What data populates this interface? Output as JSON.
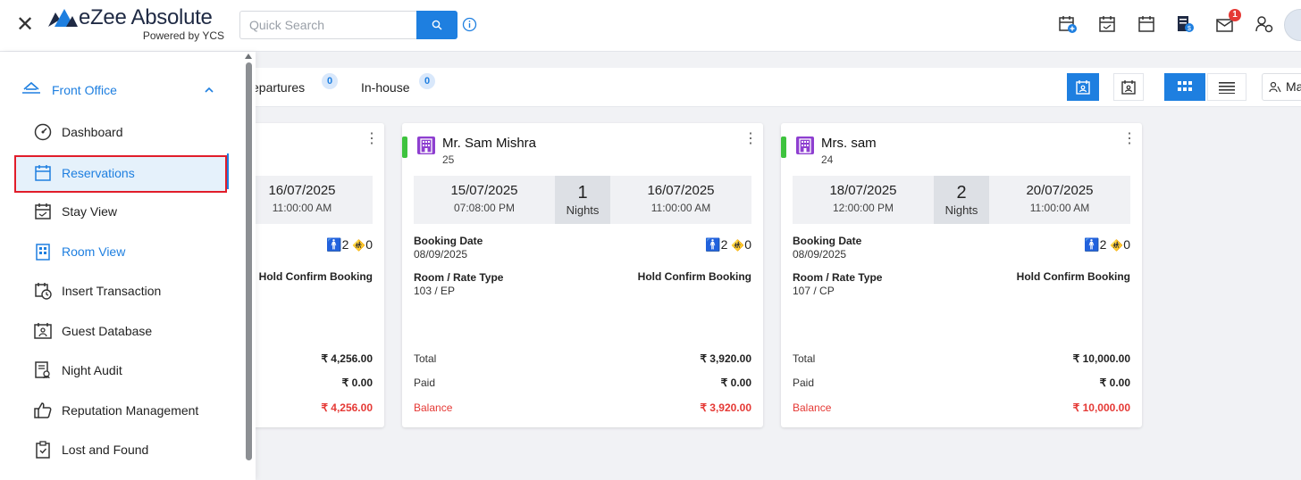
{
  "header": {
    "app_name": "eZee Absolute",
    "app_subtitle": "Powered by YCS",
    "search_placeholder": "Quick Search",
    "notification_count": "1",
    "icons": [
      "close-icon",
      "search-icon",
      "info-icon",
      "add-booking-icon",
      "calendar-check-icon",
      "calendar-icon",
      "billing-icon",
      "mail-icon",
      "handshake-icon",
      "user-avatar"
    ]
  },
  "sidebar": {
    "section_label": "Front Office",
    "items": [
      {
        "label": "Dashboard",
        "icon": "dashboard-icon"
      },
      {
        "label": "Reservations",
        "icon": "calendar-icon",
        "selected": true
      },
      {
        "label": "Stay View",
        "icon": "stay-view-icon"
      },
      {
        "label": "Room View",
        "icon": "room-view-icon"
      },
      {
        "label": "Insert Transaction",
        "icon": "insert-transaction-icon"
      },
      {
        "label": "Guest Database",
        "icon": "guest-database-icon"
      },
      {
        "label": "Night Audit",
        "icon": "night-audit-icon"
      },
      {
        "label": "Reputation Management",
        "icon": "thumbs-up-icon"
      },
      {
        "label": "Lost and Found",
        "icon": "lost-found-icon"
      }
    ]
  },
  "filterbar": {
    "tabs": [
      {
        "label": "epartures",
        "count": "0"
      },
      {
        "label": "In-house",
        "count": "0"
      }
    ],
    "ma_label": "Ma"
  },
  "cards": [
    {
      "guests_adults": "2",
      "guests_children": "0",
      "checkout_date": "16/07/2025",
      "checkout_time": "11:00:00 AM",
      "status": "Hold Confirm Booking",
      "total": "₹ 4,256.00",
      "paid": "₹ 0.00",
      "balance": "₹ 4,256.00"
    },
    {
      "name": "Mr. Sam Mishra",
      "room": "25",
      "checkin_date": "15/07/2025",
      "checkin_time": "07:08:00 PM",
      "nights": "1",
      "nights_label": "Nights",
      "checkout_date": "16/07/2025",
      "checkout_time": "11:00:00 AM",
      "booking_date_label": "Booking Date",
      "booking_date": "08/09/2025",
      "guests_adults": "2",
      "guests_children": "0",
      "room_rate_label": "Room / Rate Type",
      "room_rate": "103 / EP",
      "status": "Hold Confirm Booking",
      "total_label": "Total",
      "total": "₹ 3,920.00",
      "paid_label": "Paid",
      "paid": "₹ 0.00",
      "balance_label": "Balance",
      "balance": "₹ 3,920.00"
    },
    {
      "name": "Mrs. sam",
      "room": "24",
      "checkin_date": "18/07/2025",
      "checkin_time": "12:00:00 PM",
      "nights": "2",
      "nights_label": "Nights",
      "checkout_date": "20/07/2025",
      "checkout_time": "11:00:00 AM",
      "booking_date_label": "Booking Date",
      "booking_date": "08/09/2025",
      "guests_adults": "2",
      "guests_children": "0",
      "room_rate_label": "Room / Rate Type",
      "room_rate": "107 / CP",
      "status": "Hold Confirm Booking",
      "total_label": "Total",
      "total": "₹ 10,000.00",
      "paid_label": "Paid",
      "paid": "₹ 0.00",
      "balance_label": "Balance",
      "balance": "₹ 10,000.00"
    }
  ],
  "colors": {
    "accent": "#1e7fe0",
    "status_green": "#3ec33e",
    "balance_red": "#e53935",
    "selection_border": "#e11d2a"
  }
}
